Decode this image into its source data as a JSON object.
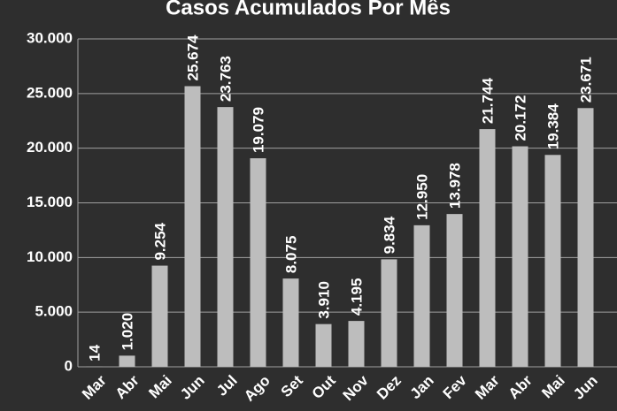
{
  "chart_data": {
    "type": "bar",
    "title": "Casos Acumulados Por Mês",
    "categories": [
      "Mar",
      "Abr",
      "Mai",
      "Jun",
      "Jul",
      "Ago",
      "Set",
      "Out",
      "Nov",
      "Dez",
      "Jan",
      "Fev",
      "Mar",
      "Abr",
      "Mai",
      "Jun"
    ],
    "values": [
      14,
      1020,
      9254,
      25674,
      23763,
      19079,
      8075,
      3910,
      4195,
      9834,
      12950,
      13978,
      21744,
      20172,
      19384,
      23671
    ],
    "value_labels": [
      "14",
      "1.020",
      "9.254",
      "25.674",
      "23.763",
      "19.079",
      "8.075",
      "3.910",
      "4.195",
      "9.834",
      "12.950",
      "13.978",
      "21.744",
      "20.172",
      "19.384",
      "23.671"
    ],
    "color": "#bdbdbd",
    "ylim": [
      0,
      30000
    ],
    "yticks": [
      0,
      {
        "value": 5000,
        "label": "5.000"
      },
      {
        "value": 10000,
        "label": "10.000"
      },
      {
        "value": 15000,
        "label": "15.000"
      },
      {
        "value": 20000,
        "label": "20.000"
      },
      {
        "value": 25000,
        "label": "25.000"
      },
      {
        "value": 30000,
        "label": "30.000"
      }
    ],
    "grid": true
  }
}
